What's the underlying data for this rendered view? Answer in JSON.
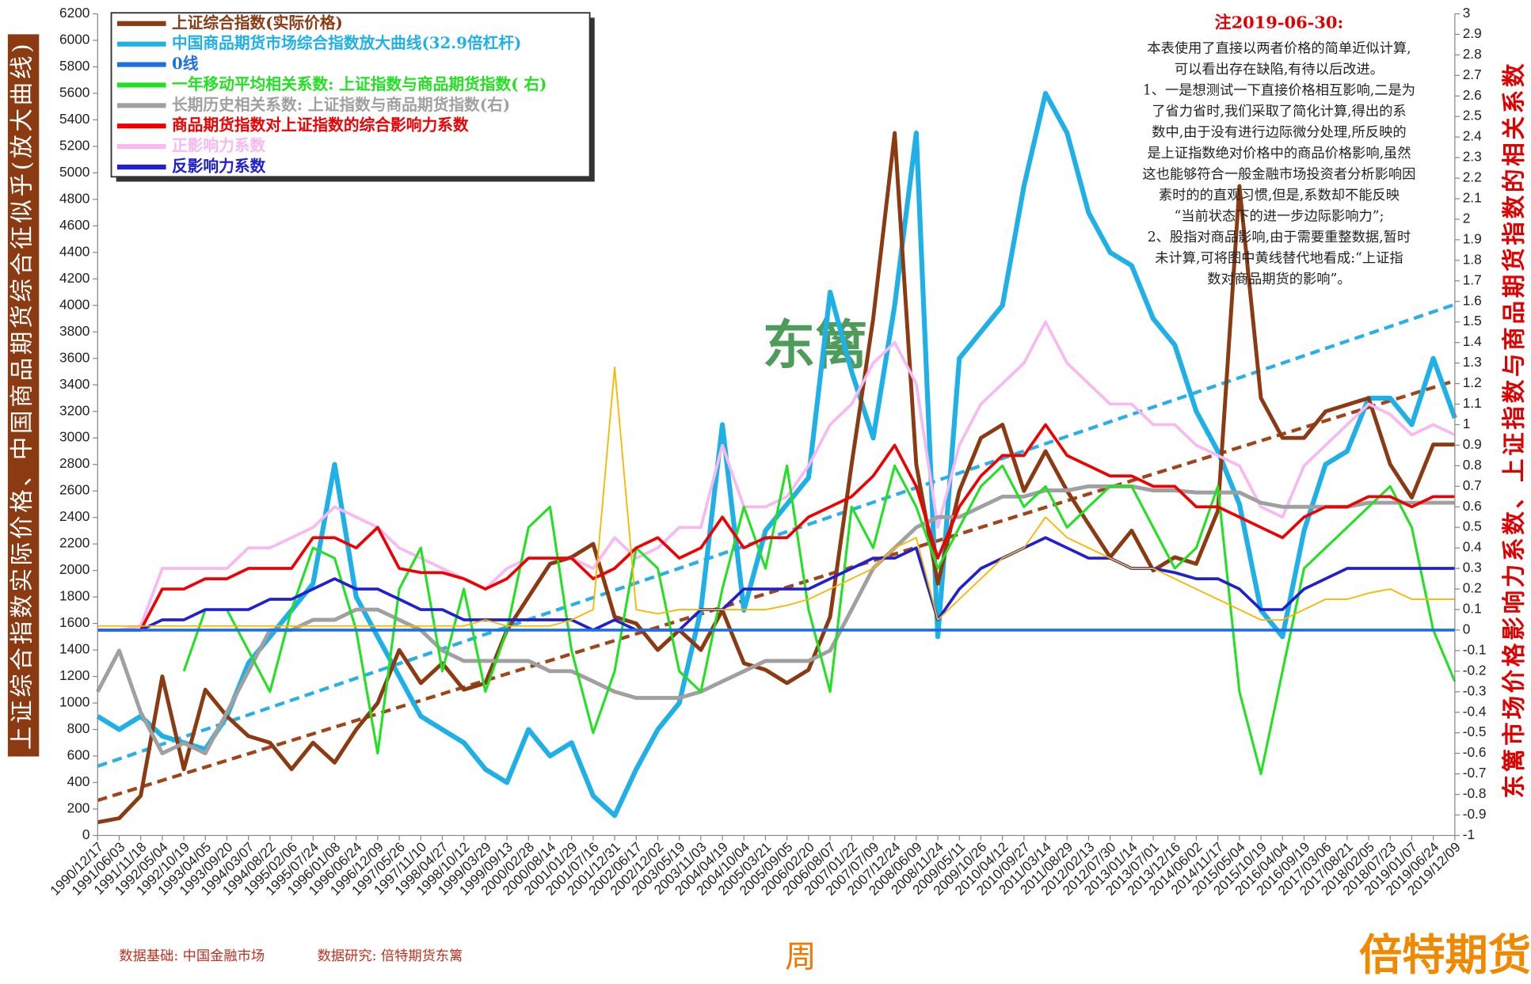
{
  "chart_data": {
    "type": "line",
    "left_axis_label": "上证综合指数实际价格、中国商品期货综合征似乎(放大曲线)",
    "right_axis_label": "东篱市场价格影响力系数、上证指数与商品期货指数的相关系数",
    "x_label": "周",
    "watermark": "东篱",
    "footer_left": "数据基础: 中国金融市场",
    "footer_mid": "数据研究: 倍特期货东篱",
    "logo": "倍特期货",
    "note": {
      "title": "注2019-06-30:",
      "lines": [
        "本表使用了直接以两者价格的简单近似计算,",
        "可以看出存在缺陷,有待以后改进。",
        "1、一是想测试一下直接价格相互影响,二是为",
        "了省力省时,我们采取了简化计算,得出的系",
        "数中,由于没有进行边际微分处理,所反映的",
        "是上证指数绝对价格中的商品价格影响,虽然",
        "这也能够符合一般金融市场投资者分析影响因",
        "素时的的直观习惯,但是,系数却不能反映",
        "“当前状态下的进一步边际影响力”;",
        "2、股指对商品影响,由于需要重整数据,暂时",
        "未计算,可将图中黄线替代地看成:“上证指",
        "数对商品期货的影响”。"
      ]
    },
    "categories": [
      "1990/12/17",
      "1991/06/03",
      "1991/11/18",
      "1992/05/04",
      "1992/10/19",
      "1993/04/05",
      "1993/09/20",
      "1994/03/07",
      "1994/08/22",
      "1995/02/06",
      "1995/07/24",
      "1996/01/08",
      "1996/06/24",
      "1996/12/09",
      "1997/05/26",
      "1997/11/10",
      "1998/04/27",
      "1998/10/12",
      "1999/03/29",
      "1999/09/13",
      "2000/02/28",
      "2000/08/14",
      "2001/01/29",
      "2001/07/16",
      "2001/12/31",
      "2002/06/17",
      "2002/12/02",
      "2003/05/19",
      "2003/11/03",
      "2004/04/19",
      "2004/10/04",
      "2005/03/21",
      "2005/09/05",
      "2006/02/20",
      "2006/08/07",
      "2007/01/22",
      "2007/07/09",
      "2007/12/24",
      "2008/06/09",
      "2008/11/24",
      "2009/05/11",
      "2009/10/26",
      "2010/04/12",
      "2010/09/27",
      "2011/03/14",
      "2011/08/29",
      "2012/02/13",
      "2012/07/30",
      "2013/01/14",
      "2013/07/01",
      "2013/12/16",
      "2014/06/02",
      "2014/11/17",
      "2015/05/04",
      "2015/10/19",
      "2016/04/04",
      "2016/09/19",
      "2017/03/06",
      "2017/08/21",
      "2018/02/05",
      "2018/07/23",
      "2019/01/07",
      "2019/06/24",
      "2019/12/09"
    ],
    "ylim": [
      0,
      6200
    ],
    "yticks": [
      0,
      200,
      400,
      600,
      800,
      1000,
      1200,
      1400,
      1600,
      1800,
      2000,
      2200,
      2400,
      2600,
      2800,
      3000,
      3200,
      3400,
      3600,
      3800,
      4000,
      4200,
      4400,
      4600,
      4800,
      5000,
      5200,
      5400,
      5600,
      5800,
      6000,
      6200
    ],
    "y2lim": [
      -1,
      3
    ],
    "y2ticks": [
      -1,
      -0.9,
      -0.8,
      -0.7,
      -0.6,
      -0.5,
      -0.4,
      -0.3,
      -0.2,
      -0.1,
      0,
      0.1,
      0.2,
      0.3,
      0.4,
      0.5,
      0.6,
      0.7,
      0.8,
      0.9,
      1,
      1.1,
      1.2,
      1.3,
      1.4,
      1.5,
      1.6,
      1.7,
      1.8,
      1.9,
      2,
      2.1,
      2.2,
      2.3,
      2.4,
      2.5,
      2.6,
      2.7,
      2.8,
      2.9,
      3
    ],
    "legend": "upper left",
    "series": [
      {
        "name": "上证综合指数(实际价格)",
        "color": "#8b3a12",
        "width": 4,
        "values": [
          100,
          130,
          300,
          1200,
          500,
          1100,
          900,
          750,
          700,
          500,
          700,
          550,
          800,
          1000,
          1400,
          1150,
          1300,
          1100,
          1150,
          1550,
          1800,
          2050,
          2100,
          2200,
          1650,
          1600,
          1400,
          1550,
          1400,
          1700,
          1300,
          1250,
          1150,
          1250,
          1650,
          2800,
          3900,
          5300,
          2800,
          1900,
          2600,
          3000,
          3100,
          2600,
          2900,
          2600,
          2350,
          2100,
          2300,
          2000,
          2100,
          2050,
          2450,
          4900,
          3300,
          3000,
          3000,
          3200,
          3250,
          3300,
          2800,
          2550,
          2950,
          2950
        ]
      },
      {
        "name": "中国商品期货市场综合指数放大曲线(32.9倍杠杆)",
        "color": "#1fb0e8",
        "width": 5,
        "values": [
          900,
          800,
          900,
          750,
          700,
          650,
          900,
          1300,
          1500,
          1700,
          1900,
          2800,
          1800,
          1500,
          1200,
          900,
          800,
          700,
          500,
          400,
          800,
          600,
          700,
          300,
          150,
          500,
          800,
          1000,
          1700,
          3100,
          1700,
          2300,
          2500,
          2700,
          4100,
          3500,
          3000,
          4000,
          5300,
          1500,
          3600,
          3800,
          4000,
          4900,
          5600,
          5300,
          4700,
          4400,
          4300,
          3900,
          3700,
          3200,
          2900,
          2500,
          1700,
          1500,
          2300,
          2800,
          2900,
          3300,
          3300,
          3100,
          3600,
          3150
        ]
      },
      {
        "name": "0线",
        "color": "#1e6fe0",
        "width": 3,
        "axis": "y2",
        "value": 0
      },
      {
        "name": "一年移动平均相关系数: 上证指数与商品期货指数( 右)",
        "color": "#22e022",
        "width": 2.5,
        "axis": "y2",
        "values": [
          null,
          null,
          null,
          null,
          -0.2,
          0.1,
          0.1,
          -0.1,
          -0.3,
          0.1,
          0.4,
          0.35,
          0.0,
          -0.6,
          0.2,
          0.4,
          -0.2,
          0.2,
          -0.3,
          0.0,
          0.5,
          0.6,
          -0.1,
          -0.5,
          -0.2,
          0.4,
          0.3,
          -0.2,
          -0.3,
          0.2,
          0.6,
          0.3,
          0.8,
          0.1,
          -0.3,
          0.6,
          0.4,
          0.8,
          0.6,
          0.3,
          0.5,
          0.7,
          0.8,
          0.6,
          0.7,
          0.5,
          0.6,
          0.7,
          0.7,
          0.5,
          0.3,
          0.4,
          0.7,
          -0.3,
          -0.7,
          -0.2,
          0.3,
          0.4,
          0.5,
          0.6,
          0.7,
          0.5,
          0.0,
          -0.25
        ]
      },
      {
        "name": "长期历史相关系数: 上证指数与商品期货指数(右)",
        "color": "#a0a0a0",
        "width": 4,
        "axis": "y2",
        "values": [
          -0.3,
          -0.1,
          -0.4,
          -0.6,
          -0.55,
          -0.6,
          -0.4,
          -0.2,
          0.0,
          0.0,
          0.05,
          0.05,
          0.1,
          0.1,
          0.05,
          0.0,
          -0.1,
          -0.15,
          -0.15,
          -0.15,
          -0.15,
          -0.2,
          -0.2,
          -0.25,
          -0.3,
          -0.33,
          -0.33,
          -0.33,
          -0.3,
          -0.25,
          -0.2,
          -0.15,
          -0.15,
          -0.15,
          -0.1,
          0.1,
          0.3,
          0.4,
          0.5,
          0.55,
          0.55,
          0.6,
          0.65,
          0.65,
          0.68,
          0.68,
          0.7,
          0.7,
          0.7,
          0.68,
          0.68,
          0.67,
          0.67,
          0.67,
          0.62,
          0.6,
          0.6,
          0.6,
          0.6,
          0.62,
          0.62,
          0.62,
          0.62,
          0.62
        ]
      },
      {
        "name": "商品期货指数对上证指数的综合影响力系数",
        "color": "#f00000",
        "width": 3,
        "axis": "y2",
        "values": [
          0,
          0,
          0,
          0.2,
          0.2,
          0.25,
          0.25,
          0.3,
          0.3,
          0.3,
          0.45,
          0.45,
          0.4,
          0.5,
          0.3,
          0.28,
          0.28,
          0.25,
          0.2,
          0.25,
          0.35,
          0.35,
          0.35,
          0.25,
          0.3,
          0.4,
          0.45,
          0.35,
          0.4,
          0.55,
          0.4,
          0.45,
          0.45,
          0.55,
          0.6,
          0.65,
          0.75,
          0.9,
          0.7,
          0.35,
          0.6,
          0.75,
          0.85,
          0.85,
          1.0,
          0.85,
          0.8,
          0.75,
          0.75,
          0.7,
          0.7,
          0.6,
          0.6,
          0.55,
          0.5,
          0.45,
          0.55,
          0.6,
          0.6,
          0.65,
          0.65,
          0.6,
          0.65,
          0.65
        ]
      },
      {
        "name": "正影响力系数",
        "color": "#f8b8f0",
        "width": 3,
        "axis": "y2",
        "values": [
          0,
          0,
          0.02,
          0.3,
          0.3,
          0.3,
          0.3,
          0.4,
          0.4,
          0.45,
          0.5,
          0.6,
          0.55,
          0.5,
          0.4,
          0.35,
          0.3,
          0.25,
          0.2,
          0.3,
          0.35,
          0.35,
          0.35,
          0.3,
          0.45,
          0.35,
          0.4,
          0.5,
          0.5,
          0.9,
          0.6,
          0.6,
          0.65,
          0.8,
          1.0,
          1.1,
          1.3,
          1.4,
          1.2,
          0.5,
          0.9,
          1.1,
          1.2,
          1.3,
          1.5,
          1.3,
          1.2,
          1.1,
          1.1,
          1.0,
          1.0,
          0.9,
          0.85,
          0.8,
          0.6,
          0.55,
          0.8,
          0.9,
          1.0,
          1.1,
          1.05,
          0.95,
          1.0,
          0.95
        ]
      },
      {
        "name": "反影响力系数",
        "color": "#2020d0",
        "width": 3,
        "axis": "y2",
        "values": [
          0,
          0,
          0,
          0.05,
          0.05,
          0.1,
          0.1,
          0.1,
          0.15,
          0.15,
          0.2,
          0.25,
          0.2,
          0.2,
          0.15,
          0.1,
          0.1,
          0.05,
          0.05,
          0.05,
          0.05,
          0.05,
          0.05,
          0,
          0.05,
          0,
          0,
          0,
          0.1,
          0.1,
          0.2,
          0.2,
          0.2,
          0.2,
          0.25,
          0.3,
          0.35,
          0.35,
          0.4,
          0.05,
          0.2,
          0.3,
          0.35,
          0.4,
          0.45,
          0.4,
          0.35,
          0.35,
          0.3,
          0.3,
          0.28,
          0.25,
          0.25,
          0.2,
          0.1,
          0.1,
          0.2,
          0.25,
          0.3,
          0.3,
          0.3,
          0.3,
          0.3,
          0.3
        ]
      },
      {
        "color": "#f8b800",
        "width": 1.5,
        "axis": "y2",
        "values": [
          0.02,
          0.02,
          0.02,
          0.02,
          0.02,
          0.02,
          0.02,
          0.02,
          0.02,
          0.02,
          0.02,
          0.02,
          0.02,
          0.02,
          0.02,
          0.02,
          0.02,
          0.02,
          0.05,
          0.02,
          0.02,
          0.02,
          0.05,
          0.1,
          1.28,
          0.1,
          0.08,
          0.1,
          0.1,
          0.1,
          0.1,
          0.1,
          0.12,
          0.15,
          0.2,
          0.25,
          0.3,
          0.4,
          0.45,
          0.05,
          0.15,
          0.25,
          0.35,
          0.4,
          0.55,
          0.45,
          0.4,
          0.35,
          0.3,
          0.3,
          0.25,
          0.2,
          0.15,
          0.1,
          0.05,
          0.05,
          0.1,
          0.15,
          0.15,
          0.18,
          0.2,
          0.15,
          0.15,
          0.15
        ]
      }
    ],
    "trend_lines": [
      {
        "color": "#2ab0e8",
        "x": [
          "1990/12/17",
          "2019/12/09"
        ],
        "values": [
          523,
          4007
        ]
      },
      {
        "color": "#a0441a",
        "x": [
          "1990/12/17",
          "2019/12/09"
        ],
        "values": [
          265,
          3431
        ]
      }
    ]
  }
}
